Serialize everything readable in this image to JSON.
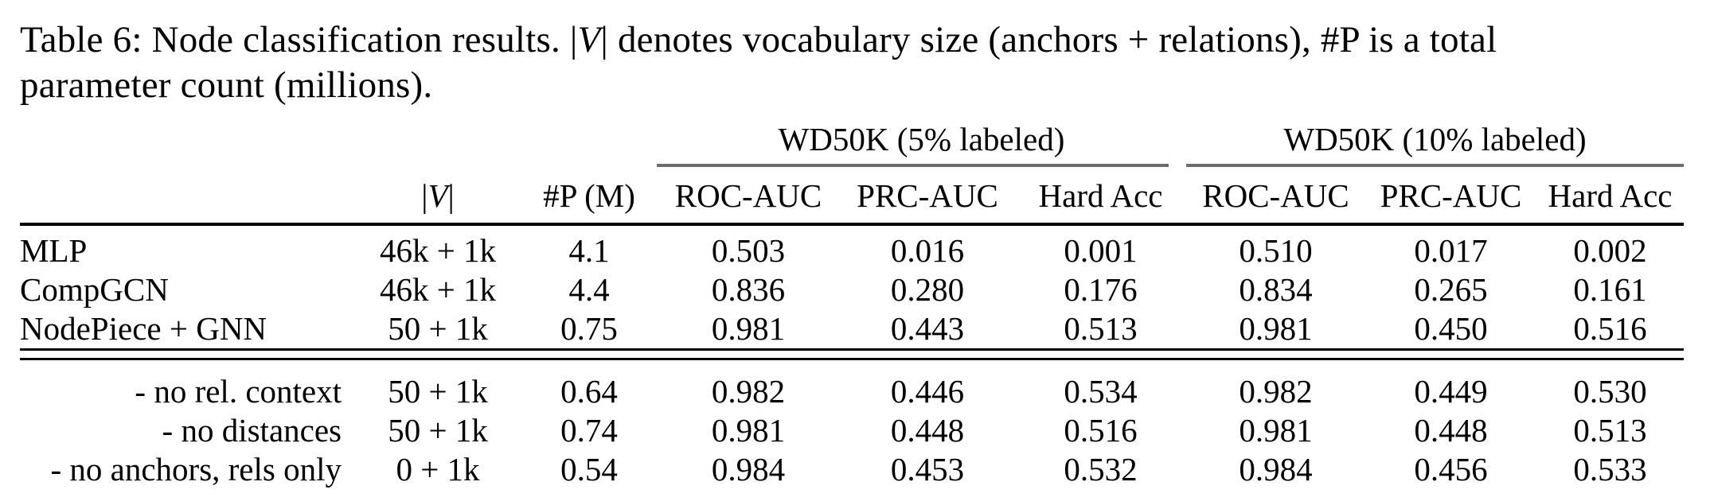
{
  "caption": {
    "prefix": "Table 6: Node classification results. ",
    "v_bar": "|",
    "v_symbol": "V",
    "line1_suffix": " denotes vocabulary size (anchors + relations), #P is a total",
    "line2": "parameter count (millions)."
  },
  "table": {
    "groups": {
      "g5": "WD50K (5% labeled)",
      "g10": "WD50K (10% labeled)"
    },
    "header": {
      "bar": "|",
      "v": "V",
      "p": "#P (M)",
      "metrics_5": [
        "ROC-AUC",
        "PRC-AUC",
        "Hard Acc"
      ],
      "metrics_10": [
        "ROC-AUC",
        "PRC-AUC",
        "Hard Acc"
      ]
    },
    "rows": [
      {
        "label": "MLP",
        "cells": [
          "46k + 1k",
          "4.1",
          "0.503",
          "0.016",
          "0.001",
          "0.510",
          "0.017",
          "0.002"
        ]
      },
      {
        "label": "CompGCN",
        "cells": [
          "46k + 1k",
          "4.4",
          "0.836",
          "0.280",
          "0.176",
          "0.834",
          "0.265",
          "0.161"
        ]
      },
      {
        "label": "NodePiece + GNN",
        "cells": [
          "50 + 1k",
          "0.75",
          "0.981",
          "0.443",
          "0.513",
          "0.981",
          "0.450",
          "0.516"
        ]
      }
    ],
    "ablation_rows": [
      {
        "label": "- no rel. context",
        "cells": [
          "50 + 1k",
          "0.64",
          "0.982",
          "0.446",
          "0.534",
          "0.982",
          "0.449",
          "0.530"
        ]
      },
      {
        "label": "- no distances",
        "cells": [
          "50 + 1k",
          "0.74",
          "0.981",
          "0.448",
          "0.516",
          "0.981",
          "0.448",
          "0.513"
        ]
      },
      {
        "label": "- no anchors, rels only",
        "cells": [
          "0 + 1k",
          "0.54",
          "0.984",
          "0.453",
          "0.532",
          "0.984",
          "0.456",
          "0.533"
        ]
      }
    ],
    "rule_colors": {
      "cmidrule": "#6b6b6b",
      "heavy_rule": "#000000"
    }
  }
}
